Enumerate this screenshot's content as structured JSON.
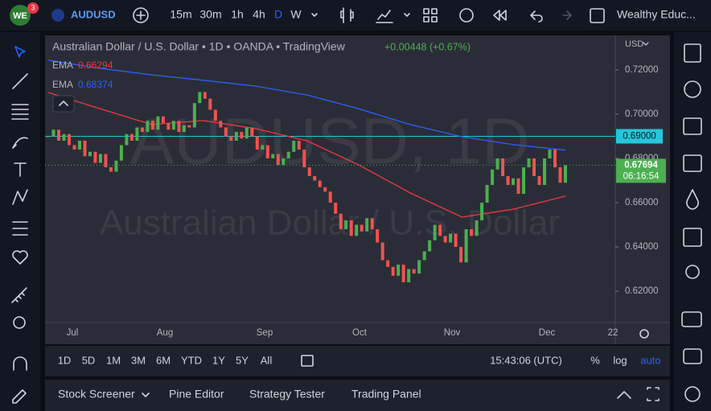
{
  "toolbar": {
    "avatar": "WE",
    "badge": "3",
    "symbol": "AUDUSD",
    "intervals": [
      "15m",
      "30m",
      "1h",
      "4h",
      "D",
      "W"
    ],
    "account": "Wealthy Educ..."
  },
  "chart_data": {
    "type": "candlestick",
    "title": "Australian Dollar / U.S. Dollar • 1D • OANDA • TradingView",
    "change": "+0.00448 (+0.67%)",
    "watermark": [
      "AUDUSD, 1D",
      "Australian Dollar / U.S. Dollar"
    ],
    "currency": "USD",
    "up_color": "#4caf50",
    "down_color": "#ef5350",
    "close": [
      0.69,
      0.693,
      0.688,
      0.691,
      0.686,
      0.684,
      0.688,
      0.681,
      0.683,
      0.678,
      0.682,
      0.676,
      0.674,
      0.679,
      0.686,
      0.691,
      0.688,
      0.694,
      0.692,
      0.697,
      0.693,
      0.699,
      0.696,
      0.693,
      0.697,
      0.692,
      0.695,
      0.694,
      0.705,
      0.71,
      0.707,
      0.702,
      0.697,
      0.694,
      0.69,
      0.688,
      0.692,
      0.689,
      0.694,
      0.69,
      0.684,
      0.686,
      0.68,
      0.682,
      0.677,
      0.68,
      0.683,
      0.688,
      0.684,
      0.676,
      0.672,
      0.67,
      0.667,
      0.665,
      0.66,
      0.655,
      0.648,
      0.652,
      0.645,
      0.65,
      0.647,
      0.653,
      0.648,
      0.642,
      0.634,
      0.631,
      0.627,
      0.632,
      0.624,
      0.63,
      0.628,
      0.634,
      0.638,
      0.643,
      0.65,
      0.645,
      0.642,
      0.646,
      0.64,
      0.633,
      0.648,
      0.645,
      0.652,
      0.66,
      0.668,
      0.675,
      0.68,
      0.672,
      0.668,
      0.671,
      0.664,
      0.676,
      0.68,
      0.672,
      0.668,
      0.68,
      0.684,
      0.676,
      0.669,
      0.67694
    ],
    "series": [
      {
        "name": "EMA",
        "color": "#2962ff",
        "values": [
          0.7244,
          0.7207,
          0.7178,
          0.7153,
          0.7127,
          0.7087,
          0.7025,
          0.6953,
          0.6898,
          0.6862,
          0.68374
        ]
      },
      {
        "name": "EMA",
        "color": "#f23645",
        "values": [
          0.7098,
          0.7025,
          0.6953,
          0.6971,
          0.6935,
          0.688,
          0.6771,
          0.6644,
          0.6535,
          0.6571,
          0.66294
        ]
      }
    ],
    "ylim": [
      0.6062,
      0.7356
    ],
    "yticks": [
      {
        "value": 0.62,
        "label": "0.62000"
      },
      {
        "value": 0.64,
        "label": "0.64000"
      },
      {
        "value": 0.66,
        "label": "0.66000"
      },
      {
        "value": 0.68,
        "label": "0.68000"
      },
      {
        "value": 0.7,
        "label": "0.70000"
      },
      {
        "value": 0.72,
        "label": "0.72000"
      }
    ],
    "xticks": [
      "Jul",
      "Aug",
      "Sep",
      "Oct",
      "Nov",
      "Dec",
      "22"
    ],
    "hline": {
      "value": 0.69,
      "label": "0.69000",
      "color": "#26c6da"
    },
    "countdown": "06:16:54"
  },
  "range_bar": {
    "ranges": [
      "1D",
      "5D",
      "1M",
      "3M",
      "6M",
      "YTD",
      "1Y",
      "5Y",
      "All"
    ],
    "time": "15:43:06 (UTC)",
    "options": [
      "%",
      "log",
      "auto"
    ]
  },
  "bottom_panel": {
    "tabs": [
      "Stock Screener",
      "Pine Editor",
      "Strategy Tester",
      "Trading Panel"
    ]
  }
}
